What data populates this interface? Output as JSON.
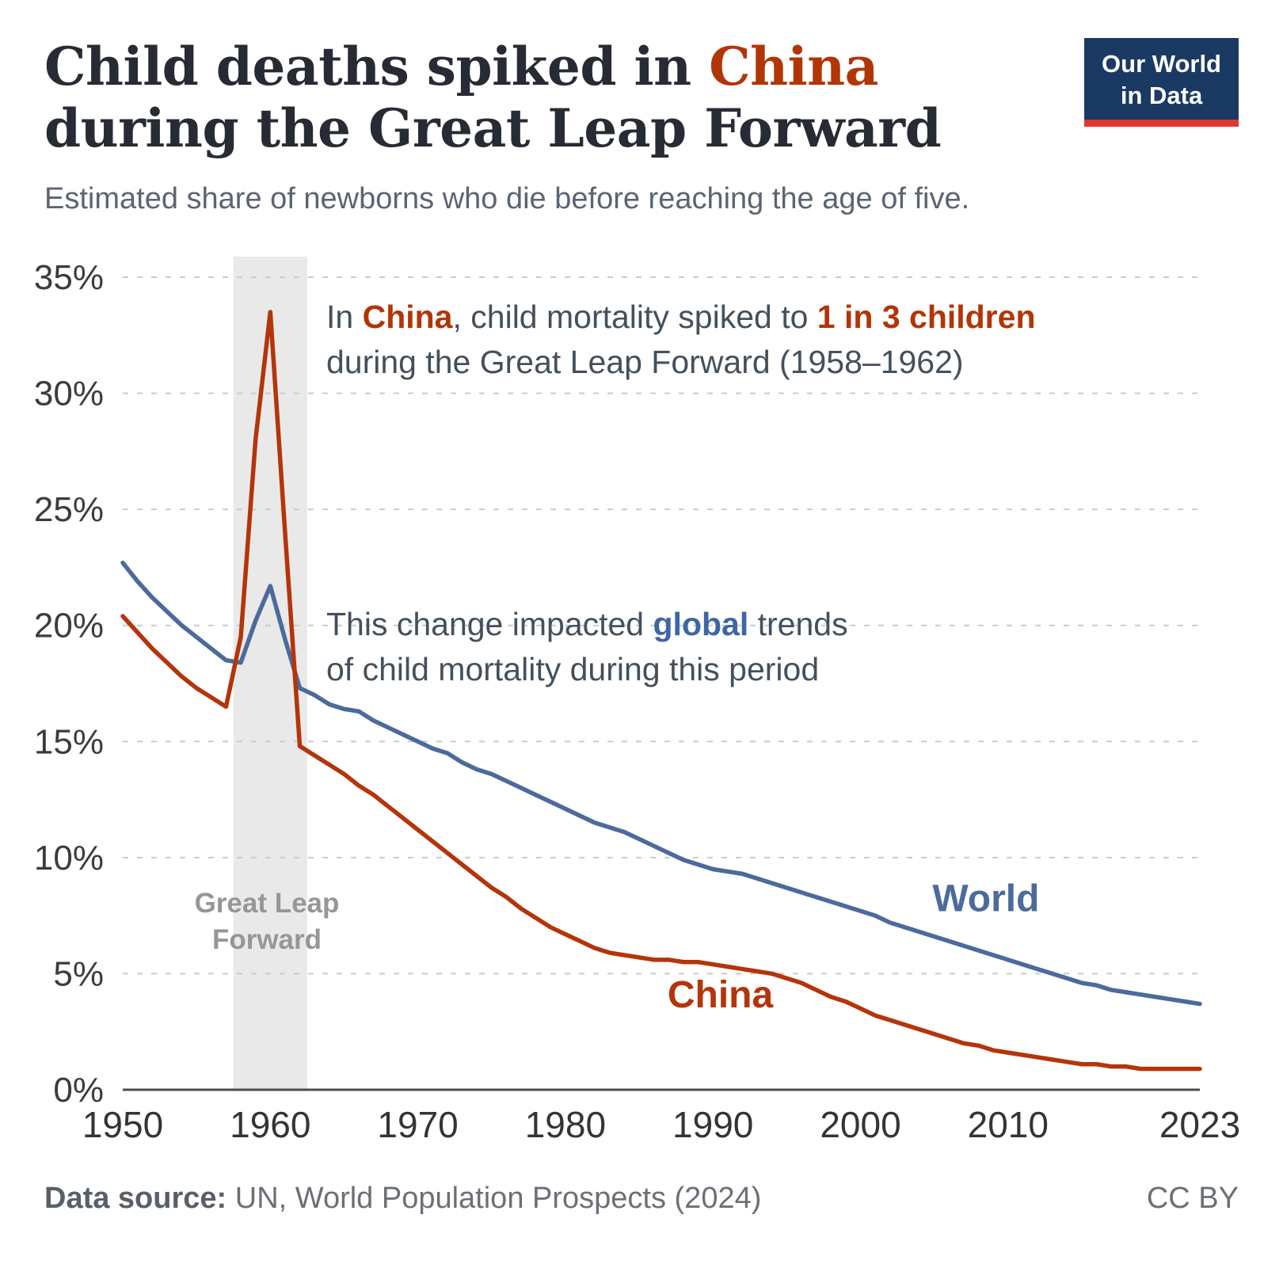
{
  "header": {
    "title_prefix": "Child deaths spiked in ",
    "title_highlight": "China",
    "title_line2": "during the Great Leap Forward",
    "subtitle": "Estimated share of newborns who die before reaching the age of five.",
    "logo": {
      "line1": "Our World",
      "line2": "in Data"
    },
    "accent_red": "#b13507",
    "accent_blue": "#4c6a9c"
  },
  "annotations": {
    "china_note": {
      "p1": "In ",
      "p2": "China",
      "p3": ", child mortality spiked to ",
      "p4": "1 in 3 children",
      "line2": "during the Great Leap Forward (1958–1962)"
    },
    "global_note": {
      "p1": "This change impacted ",
      "p2": "global",
      "p3": " trends",
      "line2": "of child mortality during this period"
    },
    "band_label_line1": "Great Leap",
    "band_label_line2": "Forward"
  },
  "footer": {
    "source_label": "Data source:",
    "source_text": " UN, World Population Prospects (2024)",
    "license": "CC BY"
  },
  "chart_data": {
    "type": "line",
    "title": "Child deaths spiked in China during the Great Leap Forward",
    "subtitle": "Estimated share of newborns who die before reaching the age of five.",
    "xlabel": "",
    "ylabel": "",
    "xlim": [
      1950,
      2023
    ],
    "ylim": [
      0,
      35
    ],
    "grid": "dashed-horizontal",
    "legend_position": "inline-labels",
    "band": {
      "x0": 1957.5,
      "x1": 1962.5,
      "color": "#e9e9e9",
      "label": "Great Leap Forward"
    },
    "yticks": [
      {
        "value": 0,
        "label": "0%"
      },
      {
        "value": 5,
        "label": "5%"
      },
      {
        "value": 10,
        "label": "10%"
      },
      {
        "value": 15,
        "label": "15%"
      },
      {
        "value": 20,
        "label": "20%"
      },
      {
        "value": 25,
        "label": "25%"
      },
      {
        "value": 30,
        "label": "30%"
      },
      {
        "value": 35,
        "label": "35%"
      }
    ],
    "xticks": [
      {
        "value": 1950,
        "label": "1950"
      },
      {
        "value": 1960,
        "label": "1960"
      },
      {
        "value": 1970,
        "label": "1970"
      },
      {
        "value": 1980,
        "label": "1980"
      },
      {
        "value": 1990,
        "label": "1990"
      },
      {
        "value": 2000,
        "label": "2000"
      },
      {
        "value": 2010,
        "label": "2010"
      },
      {
        "value": 2023,
        "label": "2023"
      }
    ],
    "x": [
      1950,
      1951,
      1952,
      1953,
      1954,
      1955,
      1956,
      1957,
      1958,
      1959,
      1960,
      1961,
      1962,
      1963,
      1964,
      1965,
      1966,
      1967,
      1968,
      1969,
      1970,
      1971,
      1972,
      1973,
      1974,
      1975,
      1976,
      1977,
      1978,
      1979,
      1980,
      1981,
      1982,
      1983,
      1984,
      1985,
      1986,
      1987,
      1988,
      1989,
      1990,
      1991,
      1992,
      1993,
      1994,
      1995,
      1996,
      1997,
      1998,
      1999,
      2000,
      2001,
      2002,
      2003,
      2004,
      2005,
      2006,
      2007,
      2008,
      2009,
      2010,
      2011,
      2012,
      2013,
      2014,
      2015,
      2016,
      2017,
      2018,
      2019,
      2020,
      2021,
      2022,
      2023
    ],
    "series": [
      {
        "name": "World",
        "color": "#4c6a9c",
        "label": {
          "x": 2008.5,
          "y": 7.7
        },
        "values": [
          22.7,
          21.9,
          21.2,
          20.6,
          20.0,
          19.5,
          19.0,
          18.5,
          18.4,
          20.2,
          21.7,
          19.4,
          17.3,
          17.0,
          16.6,
          16.4,
          16.3,
          15.9,
          15.6,
          15.3,
          15.0,
          14.7,
          14.5,
          14.1,
          13.8,
          13.6,
          13.3,
          13.0,
          12.7,
          12.4,
          12.1,
          11.8,
          11.5,
          11.3,
          11.1,
          10.8,
          10.5,
          10.2,
          9.9,
          9.7,
          9.5,
          9.4,
          9.3,
          9.1,
          8.9,
          8.7,
          8.5,
          8.3,
          8.1,
          7.9,
          7.7,
          7.5,
          7.2,
          7.0,
          6.8,
          6.6,
          6.4,
          6.2,
          6.0,
          5.8,
          5.6,
          5.4,
          5.2,
          5.0,
          4.8,
          4.6,
          4.5,
          4.3,
          4.2,
          4.1,
          4.0,
          3.9,
          3.8,
          3.7
        ]
      },
      {
        "name": "China",
        "color": "#b5350b",
        "label": {
          "x": 1990.5,
          "y": 3.55
        },
        "values": [
          20.4,
          19.7,
          19.0,
          18.4,
          17.8,
          17.3,
          16.9,
          16.5,
          19.5,
          28.0,
          33.5,
          24.0,
          14.8,
          14.4,
          14.0,
          13.6,
          13.1,
          12.7,
          12.2,
          11.7,
          11.2,
          10.7,
          10.2,
          9.7,
          9.2,
          8.7,
          8.3,
          7.8,
          7.4,
          7.0,
          6.7,
          6.4,
          6.1,
          5.9,
          5.8,
          5.7,
          5.6,
          5.6,
          5.5,
          5.5,
          5.4,
          5.3,
          5.2,
          5.1,
          5.0,
          4.8,
          4.6,
          4.3,
          4.0,
          3.8,
          3.5,
          3.2,
          3.0,
          2.8,
          2.6,
          2.4,
          2.2,
          2.0,
          1.9,
          1.7,
          1.6,
          1.5,
          1.4,
          1.3,
          1.2,
          1.1,
          1.1,
          1.0,
          1.0,
          0.9,
          0.9,
          0.9,
          0.9,
          0.9
        ]
      }
    ]
  }
}
